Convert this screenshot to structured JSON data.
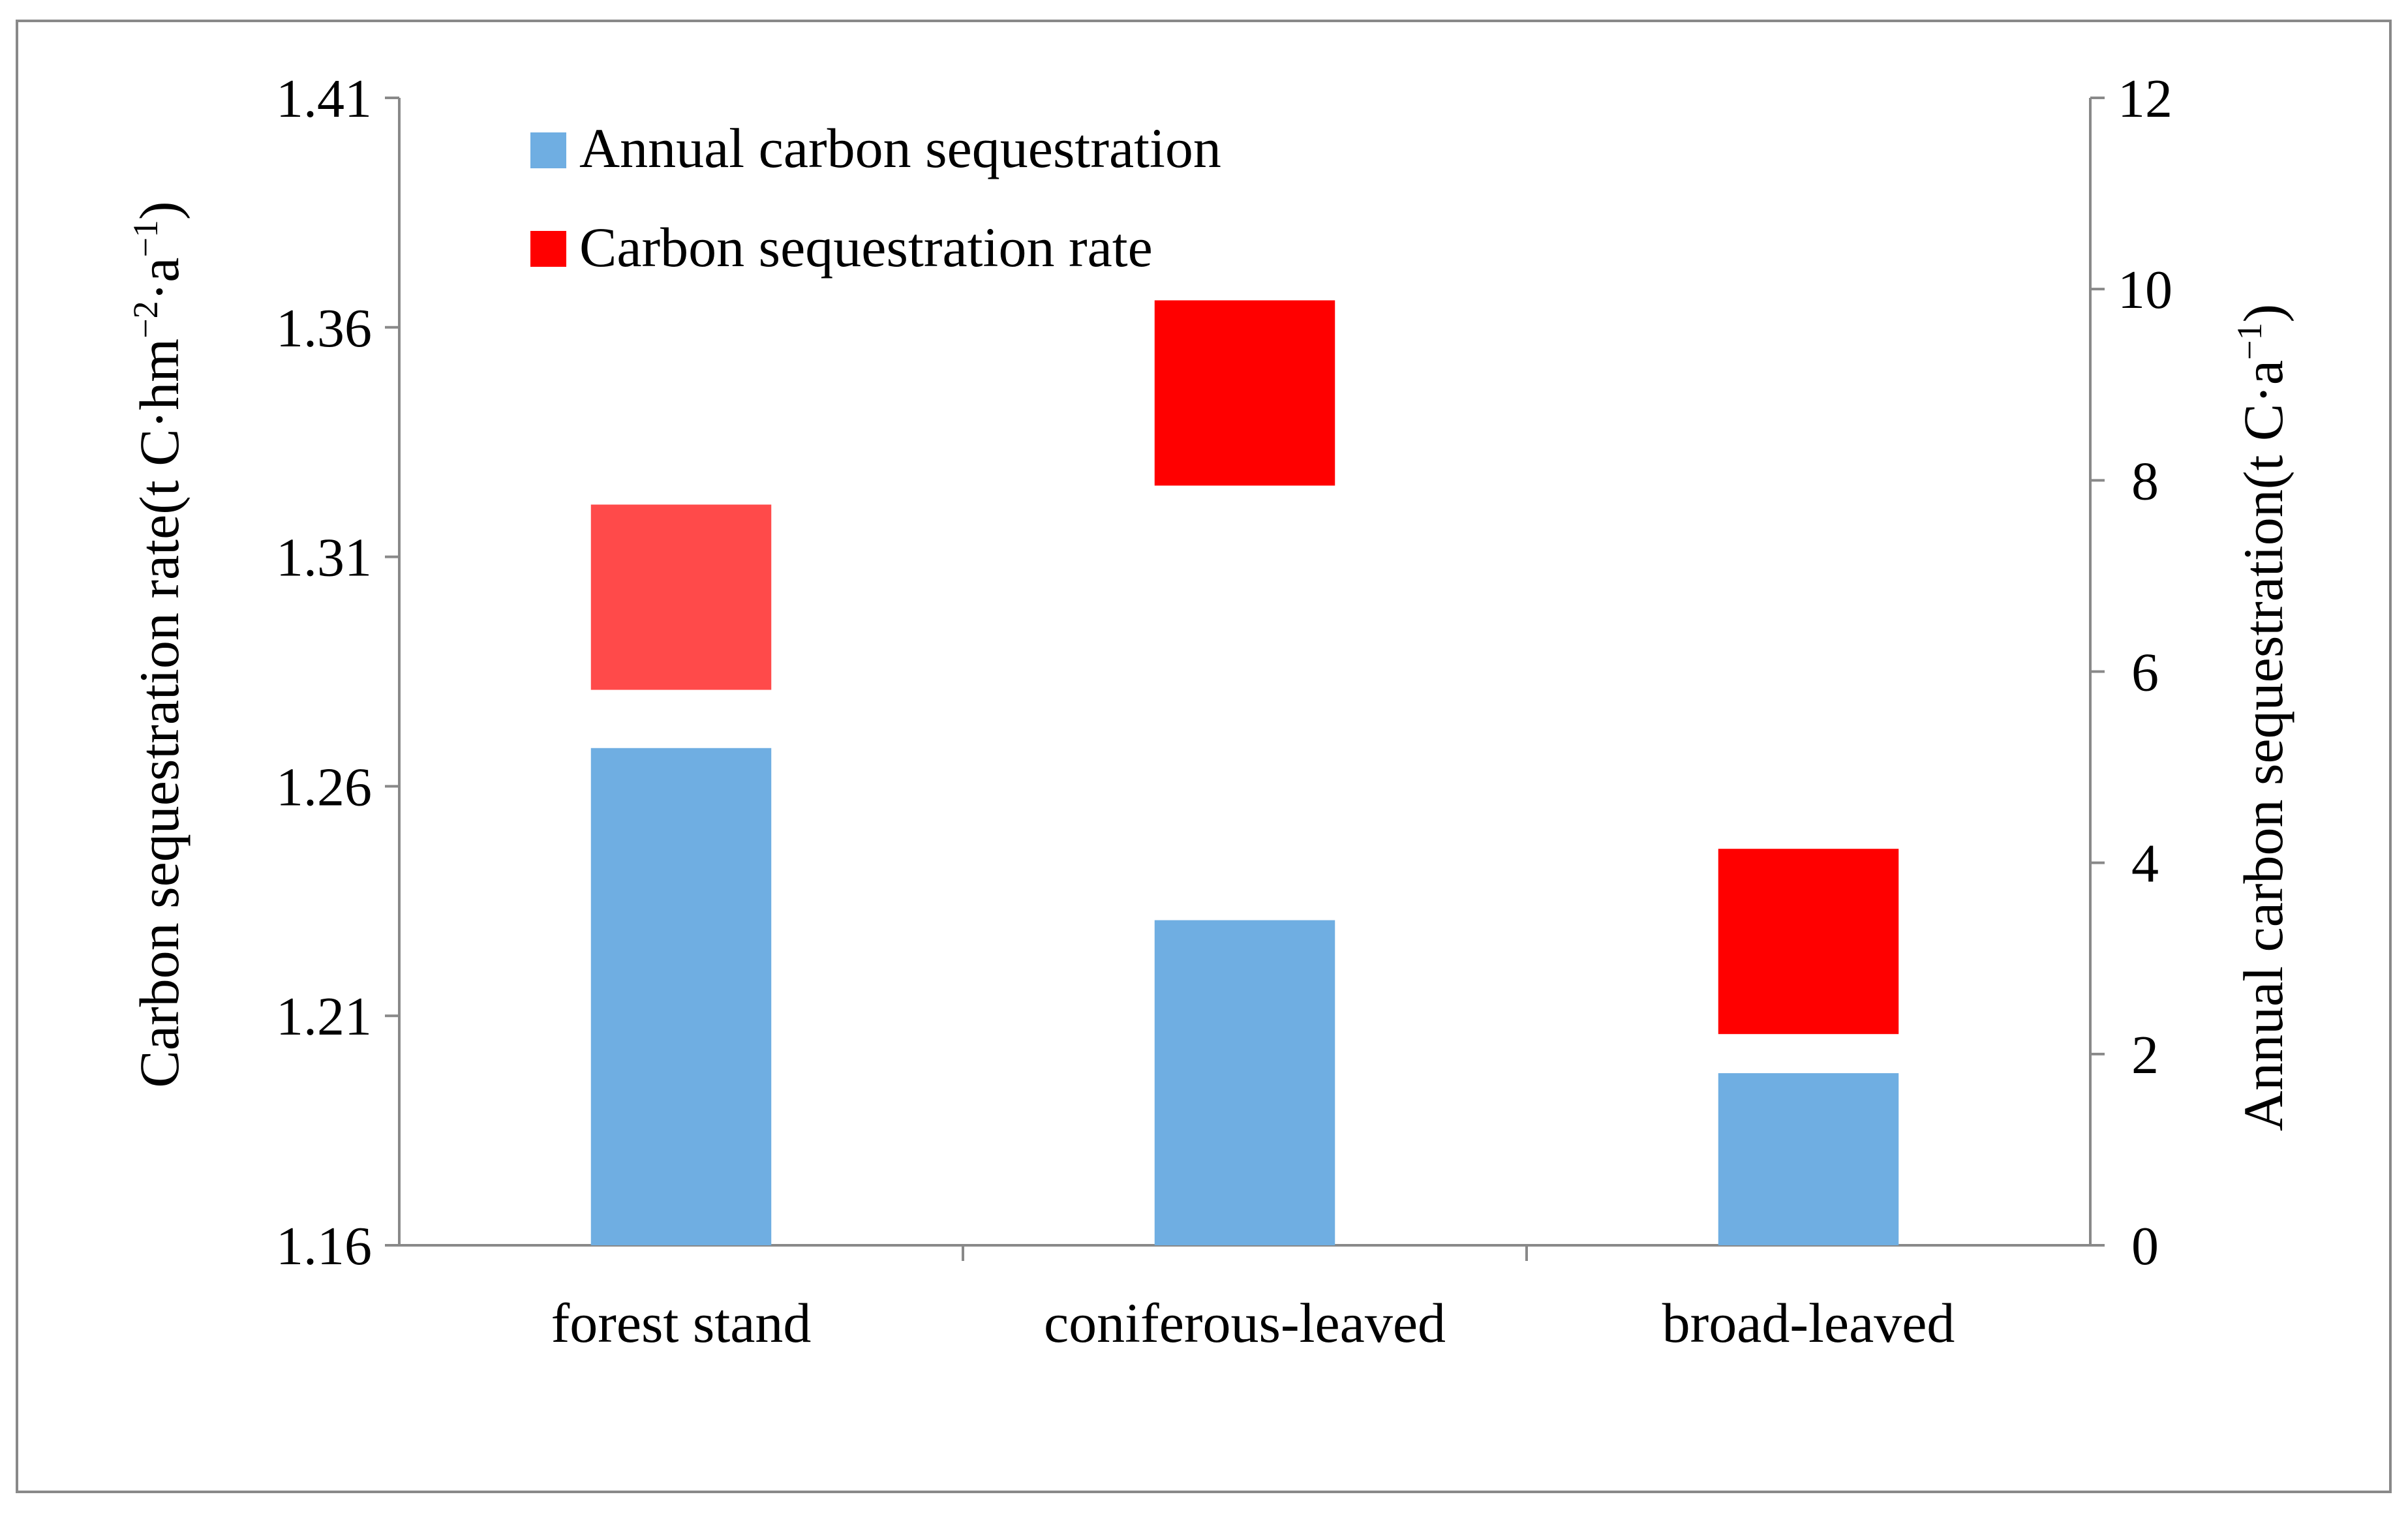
{
  "chart_data": {
    "type": "bar",
    "categories": [
      "forest stand",
      "coniferous-leaved",
      "broad-leaved"
    ],
    "series": [
      {
        "name": "Annual carbon sequestration",
        "axis": "right",
        "color": "#6faee2",
        "values": [
          5.2,
          3.4,
          1.8
        ]
      },
      {
        "name": "Carbon sequestration rate",
        "axis": "left",
        "display": "floating-marker",
        "colors": [
          "#ff4a4a",
          "#ff0000",
          "#ff0000"
        ],
        "values": [
          1.3012,
          1.3457,
          1.2262
        ]
      }
    ],
    "y_left": {
      "title_main": "Carbon sequestration rate(t C·hm",
      "title_sup1": "−2",
      "title_mid": "·a",
      "title_sup2": "−1",
      "title_end": ")",
      "ylim": [
        1.16,
        1.41
      ],
      "ticks": [
        "1.16",
        "1.21",
        "1.26",
        "1.31",
        "1.36",
        "1.41"
      ]
    },
    "y_right": {
      "title_main": "Annual carbon sequestration(t C·a",
      "title_sup": "−1",
      "title_end": ")",
      "ylim": [
        0,
        12
      ],
      "ticks": [
        "0",
        "2",
        "4",
        "6",
        "8",
        "10",
        "12"
      ]
    },
    "legend": {
      "position": "top-left",
      "entries": [
        "Annual carbon sequestration",
        "Carbon sequestration rate"
      ]
    },
    "grid": false,
    "colors": {
      "axis": "#898989",
      "frame": "#898989",
      "legend_swatch_1": "#6faee2",
      "legend_swatch_2": "#ff0000"
    }
  }
}
